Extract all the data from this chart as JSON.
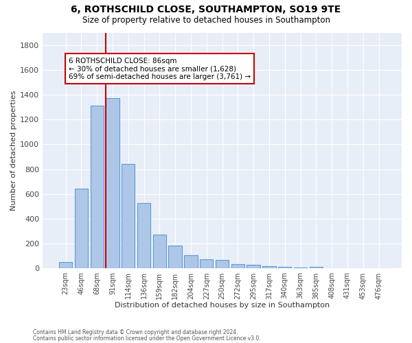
{
  "title": "6, ROTHSCHILD CLOSE, SOUTHAMPTON, SO19 9TE",
  "subtitle": "Size of property relative to detached houses in Southampton",
  "xlabel": "Distribution of detached houses by size in Southampton",
  "ylabel": "Number of detached properties",
  "footnote1": "Contains HM Land Registry data © Crown copyright and database right 2024.",
  "footnote2": "Contains public sector information licensed under the Open Government Licence v3.0.",
  "annotation_title": "6 ROTHSCHILD CLOSE: 86sqm",
  "annotation_line1": "← 30% of detached houses are smaller (1,628)",
  "annotation_line2": "69% of semi-detached houses are larger (3,761) →",
  "bar_categories": [
    "23sqm",
    "46sqm",
    "68sqm",
    "91sqm",
    "114sqm",
    "136sqm",
    "159sqm",
    "182sqm",
    "204sqm",
    "227sqm",
    "250sqm",
    "272sqm",
    "295sqm",
    "317sqm",
    "340sqm",
    "363sqm",
    "385sqm",
    "408sqm",
    "431sqm",
    "453sqm",
    "476sqm"
  ],
  "bar_heights": [
    55,
    645,
    1310,
    1375,
    840,
    525,
    275,
    185,
    110,
    75,
    70,
    38,
    32,
    20,
    14,
    10,
    12,
    0,
    0,
    0,
    0
  ],
  "bar_color": "#aec6e8",
  "bar_edge_color": "#5b9bd5",
  "vline_color": "#cc0000",
  "annotation_box_color": "#cc0000",
  "background_color": "#e8eef8",
  "ylim": [
    0,
    1900
  ],
  "yticks": [
    0,
    200,
    400,
    600,
    800,
    1000,
    1200,
    1400,
    1600,
    1800
  ],
  "figsize": [
    6.0,
    5.0
  ],
  "dpi": 100
}
